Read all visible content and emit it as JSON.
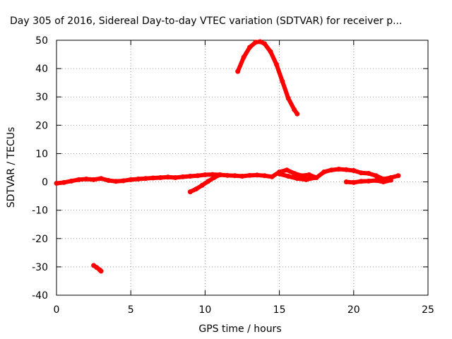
{
  "chart_data": {
    "type": "scatter",
    "title": "Day 305 of 2016, Sidereal Day-to-day VTEC variation (SDTVAR) for receiver p...",
    "xlabel": "GPS time / hours",
    "ylabel": "SDTVAR / TECUs",
    "xlim": [
      0,
      25
    ],
    "ylim": [
      -40,
      50
    ],
    "x_ticks": [
      0,
      5,
      10,
      15,
      20,
      25
    ],
    "y_ticks": [
      -40,
      -30,
      -20,
      -10,
      0,
      10,
      20,
      30,
      40,
      50
    ],
    "grid": true,
    "series_color": "#ff0000",
    "series": [
      {
        "x": [
          12.2,
          12.6,
          13.0,
          13.4,
          13.7,
          14.0,
          14.4,
          14.8,
          15.2,
          15.6,
          16.0,
          16.2
        ],
        "y": [
          39,
          44,
          47.5,
          49.3,
          49.5,
          48.8,
          46,
          41.5,
          35.5,
          29.5,
          25.5,
          24
        ]
      },
      {
        "x": [
          0.0,
          0.5,
          1.0,
          1.5,
          2.0,
          2.5,
          3.0,
          3.5,
          4.0,
          4.5,
          5.0,
          5.5,
          6.0,
          6.5,
          7.0,
          7.5,
          8.0,
          8.5,
          9.0,
          9.5,
          10.0,
          10.5,
          11.0,
          11.5,
          12.0,
          12.5,
          13.0,
          13.5,
          14.0,
          14.5,
          15.0,
          15.5,
          16.0,
          16.5,
          17.0,
          17.5,
          18.0,
          18.5,
          19.0,
          19.5,
          20.0,
          20.5,
          21.0,
          21.5,
          22.0,
          22.5,
          23.0
        ],
        "y": [
          -0.5,
          -0.2,
          0.3,
          0.8,
          1.0,
          0.8,
          1.2,
          0.5,
          0.2,
          0.4,
          0.8,
          1.0,
          1.2,
          1.4,
          1.5,
          1.7,
          1.5,
          1.8,
          2.0,
          2.2,
          2.5,
          2.6,
          2.5,
          2.3,
          2.2,
          2.0,
          2.3,
          2.4,
          2.2,
          1.8,
          3.5,
          4.2,
          3.0,
          2.2,
          2.5,
          1.5,
          3.5,
          4.2,
          4.5,
          4.3,
          4.0,
          3.2,
          3.0,
          2.2,
          1.0,
          1.5,
          2.2
        ]
      },
      {
        "x": [
          9.0,
          9.4,
          9.8,
          10.2,
          10.6,
          11.0
        ],
        "y": [
          -3.5,
          -2.5,
          -1.2,
          0.2,
          1.5,
          2.5
        ]
      },
      {
        "x": [
          15.0,
          15.6,
          16.2,
          16.8,
          17.4
        ],
        "y": [
          2.8,
          2.0,
          1.2,
          0.8,
          1.5
        ]
      },
      {
        "x": [
          19.5,
          20.0,
          20.5,
          21.0,
          21.5,
          22.0,
          22.5
        ],
        "y": [
          0.0,
          -0.2,
          0.2,
          0.3,
          0.5,
          0.0,
          0.6
        ]
      },
      {
        "x": [
          2.5,
          2.7,
          2.9,
          3.0
        ],
        "y": [
          -29.5,
          -30.2,
          -31.0,
          -31.5
        ]
      }
    ]
  }
}
